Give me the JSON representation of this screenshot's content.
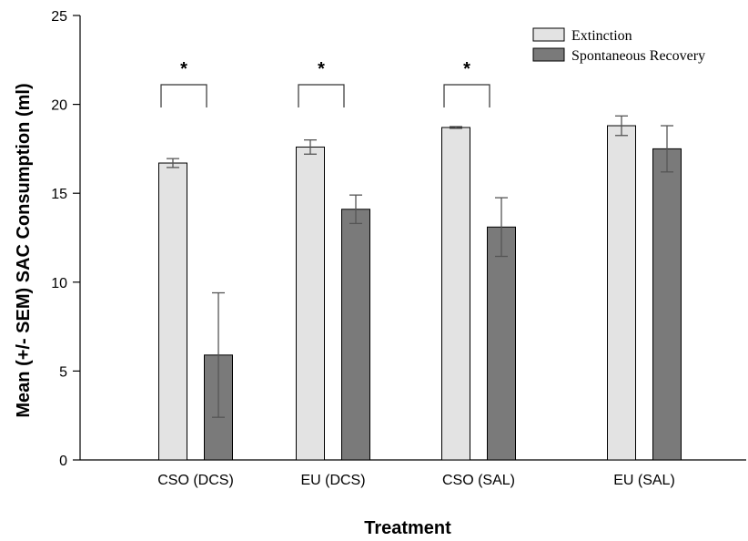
{
  "chart_data": {
    "type": "bar",
    "title": "",
    "xlabel": "Treatment",
    "ylabel": "Mean (+/- SEM) SAC Consumption (ml)",
    "ylim": [
      0,
      25
    ],
    "yticks": [
      "0",
      "5",
      "10",
      "15",
      "20",
      "25"
    ],
    "categories": [
      "CSO (DCS)",
      "EU (DCS)",
      "CSO (SAL)",
      "EU (SAL)"
    ],
    "series": [
      {
        "name": "Extinction",
        "color": "#e3e3e3",
        "values": [
          16.7,
          17.6,
          18.7,
          18.8
        ],
        "sem": [
          0.25,
          0.4,
          0.05,
          0.55
        ]
      },
      {
        "name": "Spontaneous Recovery",
        "color": "#7a7a7a",
        "values": [
          5.9,
          14.1,
          13.1,
          17.5
        ],
        "sem": [
          3.5,
          0.8,
          1.65,
          1.3
        ]
      }
    ],
    "significance": [
      {
        "category": "CSO (DCS)",
        "label": "*"
      },
      {
        "category": "EU (DCS)",
        "label": "*"
      },
      {
        "category": "CSO (SAL)",
        "label": "*"
      }
    ],
    "legend_position": "top-right",
    "grid": false
  }
}
